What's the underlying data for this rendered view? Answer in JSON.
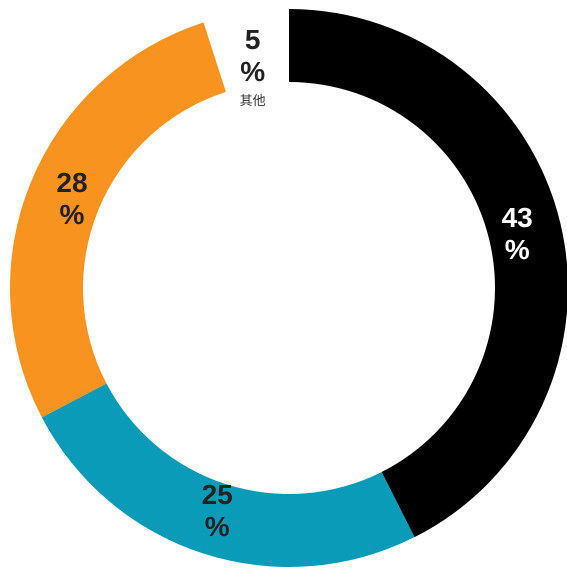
{
  "chart_data": {
    "type": "donut",
    "categories": [
      null,
      null,
      null,
      "其他"
    ],
    "values": [
      43,
      25,
      28,
      5
    ],
    "value_labels": [
      "43 %",
      "25 %",
      "28 %",
      "5 %"
    ],
    "colors": [
      "#000000",
      "#0a9bb8",
      "#f7931e",
      "#ffffff"
    ],
    "label_colors": [
      "#ffffff",
      "#222222",
      "#222222",
      "#222222"
    ]
  }
}
